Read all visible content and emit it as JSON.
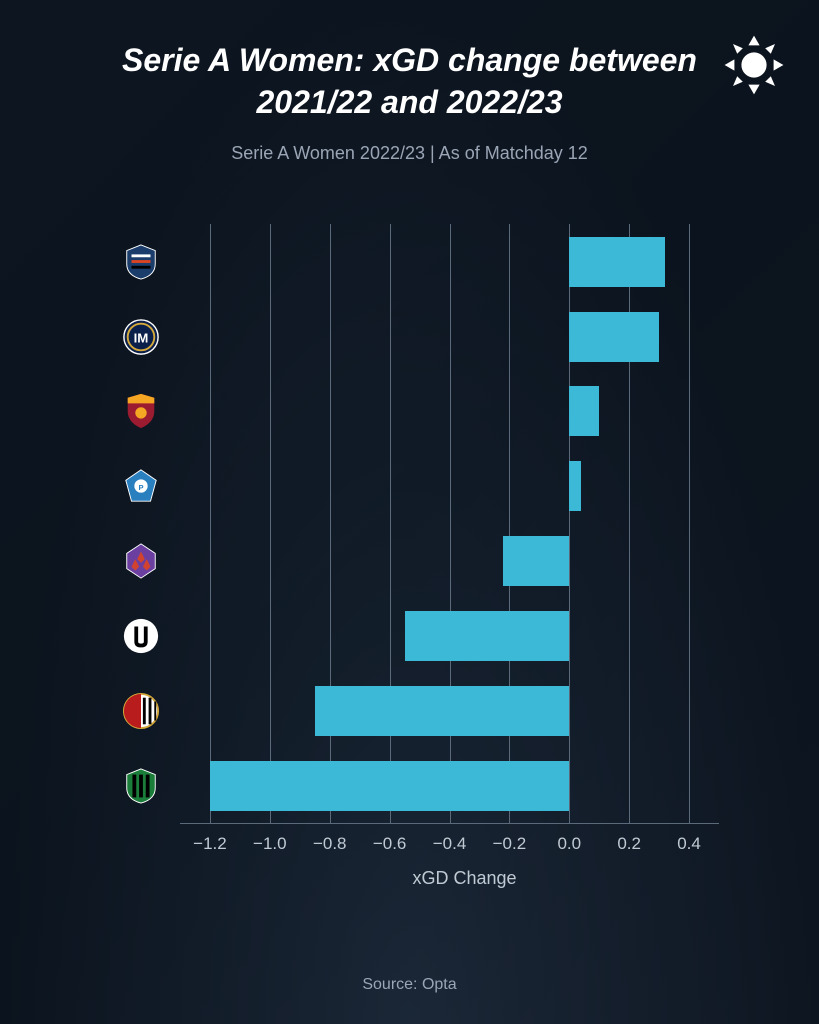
{
  "title": "Serie A Women: xGD change between 2021/22 and 2022/23",
  "subtitle": "Serie A Women 2022/23 | As of Matchday 12",
  "source": "Source: Opta",
  "chart": {
    "type": "bar",
    "orientation": "horizontal",
    "xlabel": "xGD Change",
    "xlim": [
      -1.3,
      0.5
    ],
    "xticks": [
      -1.2,
      -1.0,
      -0.8,
      -0.6,
      -0.4,
      -0.2,
      0.0,
      0.2,
      0.4
    ],
    "xtick_labels": [
      "−1.2",
      "−1.0",
      "−0.8",
      "−0.6",
      "−0.4",
      "−0.2",
      "0.0",
      "0.2",
      "0.4"
    ],
    "bar_color": "#3cb9d6",
    "grid_color": "#5a6a7a",
    "background_color": "transparent",
    "text_color": "#c0cad4",
    "data": [
      {
        "team": "Sampdoria",
        "value": 0.32,
        "crest_bg": "#1a3d6b",
        "crest_fg": "#ffffff"
      },
      {
        "team": "Inter",
        "value": 0.3,
        "crest_bg": "#0a1f4a",
        "crest_fg": "#d4a83a"
      },
      {
        "team": "Roma",
        "value": 0.1,
        "crest_bg": "#9b1b30",
        "crest_fg": "#f5a623"
      },
      {
        "team": "Pomigliano",
        "value": 0.04,
        "crest_bg": "#2a7fbf",
        "crest_fg": "#ffffff"
      },
      {
        "team": "Fiorentina",
        "value": -0.22,
        "crest_bg": "#6b3fa0",
        "crest_fg": "#ffffff"
      },
      {
        "team": "Juventus",
        "value": -0.55,
        "crest_bg": "#ffffff",
        "crest_fg": "#000000"
      },
      {
        "team": "Milan",
        "value": -0.85,
        "crest_bg": "#b91c1c",
        "crest_fg": "#000000"
      },
      {
        "team": "Sassuolo",
        "value": -1.2,
        "crest_bg": "#1a7d3a",
        "crest_fg": "#000000"
      }
    ]
  },
  "title_fontsize": 32,
  "subtitle_fontsize": 18,
  "tick_fontsize": 17,
  "label_fontsize": 18
}
